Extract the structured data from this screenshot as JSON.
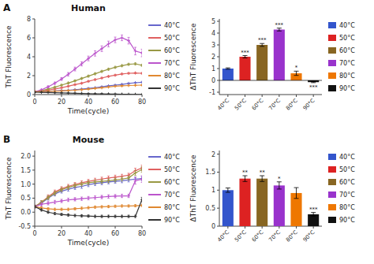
{
  "chart_data": [
    {
      "type": "line",
      "title": "Human",
      "annotations": [
        "A"
      ],
      "marker": "plus",
      "legend": "right",
      "x_label": "Time(cycle)",
      "y_label": "ThT Fluorescence",
      "x": [
        0,
        5,
        10,
        15,
        20,
        25,
        30,
        35,
        40,
        45,
        50,
        55,
        60,
        65,
        70,
        75,
        80
      ],
      "xlim": [
        0,
        80
      ],
      "xticks": [
        0,
        20,
        40,
        60,
        80
      ],
      "ylim": [
        0,
        8
      ],
      "yticks": [
        0,
        2,
        4,
        6,
        8
      ],
      "series": [
        {
          "name": "40°C",
          "color": "#6666cc",
          "values": [
            0.3,
            0.32,
            0.35,
            0.38,
            0.42,
            0.46,
            0.52,
            0.58,
            0.65,
            0.72,
            0.82,
            0.92,
            1.0,
            1.08,
            1.18,
            1.25,
            1.3
          ],
          "errors": [
            0.04,
            0.04,
            0.04,
            0.04,
            0.04,
            0.04,
            0.04,
            0.04,
            0.04,
            0.04,
            0.04,
            0.04,
            0.04,
            0.04,
            0.04,
            0.04,
            0.04
          ]
        },
        {
          "name": "50°C",
          "color": "#e06060",
          "values": [
            0.3,
            0.38,
            0.48,
            0.6,
            0.72,
            0.88,
            1.05,
            1.2,
            1.4,
            1.58,
            1.75,
            1.92,
            2.05,
            2.18,
            2.25,
            2.28,
            2.25
          ],
          "errors": [
            0.04,
            0.05,
            0.05,
            0.06,
            0.06,
            0.07,
            0.07,
            0.07,
            0.07,
            0.07,
            0.07,
            0.07,
            0.07,
            0.07,
            0.07,
            0.07,
            0.07
          ]
        },
        {
          "name": "60°C",
          "color": "#999944",
          "values": [
            0.3,
            0.42,
            0.58,
            0.78,
            1.0,
            1.22,
            1.45,
            1.7,
            1.95,
            2.2,
            2.45,
            2.68,
            2.88,
            3.05,
            3.2,
            3.25,
            3.1
          ],
          "errors": [
            0.04,
            0.05,
            0.06,
            0.07,
            0.08,
            0.09,
            0.09,
            0.09,
            0.1,
            0.1,
            0.1,
            0.1,
            0.1,
            0.1,
            0.1,
            0.1,
            0.1
          ]
        },
        {
          "name": "70°C",
          "color": "#bb55cc",
          "values": [
            0.3,
            0.5,
            0.82,
            1.2,
            1.65,
            2.15,
            2.7,
            3.25,
            3.82,
            4.35,
            4.85,
            5.35,
            5.78,
            6.0,
            5.7,
            4.6,
            4.4
          ],
          "errors": [
            0.04,
            0.07,
            0.1,
            0.12,
            0.15,
            0.18,
            0.2,
            0.22,
            0.25,
            0.28,
            0.3,
            0.3,
            0.3,
            0.3,
            0.35,
            0.4,
            0.4
          ]
        },
        {
          "name": "80°C",
          "color": "#e08830",
          "values": [
            0.3,
            0.32,
            0.34,
            0.36,
            0.38,
            0.42,
            0.46,
            0.52,
            0.58,
            0.65,
            0.72,
            0.8,
            0.88,
            0.92,
            0.96,
            0.98,
            1.0
          ],
          "errors": [
            0.04,
            0.04,
            0.04,
            0.04,
            0.04,
            0.04,
            0.04,
            0.04,
            0.04,
            0.04,
            0.04,
            0.04,
            0.04,
            0.04,
            0.04,
            0.04,
            0.04
          ]
        },
        {
          "name": "90°C",
          "color": "#333333",
          "values": [
            0.25,
            0.24,
            0.22,
            0.2,
            0.18,
            0.16,
            0.14,
            0.12,
            0.1,
            0.08,
            0.07,
            0.06,
            0.05,
            0.04,
            0.03,
            0.02,
            0.01
          ],
          "errors": [
            0.03,
            0.03,
            0.03,
            0.03,
            0.03,
            0.03,
            0.03,
            0.03,
            0.03,
            0.03,
            0.03,
            0.03,
            0.03,
            0.03,
            0.03,
            0.03,
            0.03
          ]
        }
      ]
    },
    {
      "type": "bar",
      "legend": "right",
      "y_label": "ΔThT Fluorescence",
      "categories": [
        "40°C",
        "50°C",
        "60°C",
        "70°C",
        "80°C",
        "90°C"
      ],
      "values": [
        1.0,
        2.0,
        3.0,
        4.3,
        0.6,
        -0.15
      ],
      "errors": [
        0.06,
        0.1,
        0.12,
        0.12,
        0.18,
        0.04
      ],
      "significance": [
        null,
        "***",
        "***",
        "***",
        "*",
        "***"
      ],
      "colors": [
        "#3355cc",
        "#dd2222",
        "#886622",
        "#9933cc",
        "#ee7700",
        "#111111"
      ],
      "ylim": [
        -1.2,
        5.2
      ],
      "yticks": [
        -1,
        0,
        1,
        2,
        3,
        4,
        5
      ]
    },
    {
      "type": "line",
      "title": "Mouse",
      "annotations": [
        "B"
      ],
      "marker": "plus",
      "legend": "right",
      "x_label": "Time(cycle)",
      "y_label": "ThT Fluorescence",
      "x": [
        0,
        5,
        10,
        15,
        20,
        25,
        30,
        35,
        40,
        45,
        50,
        55,
        60,
        65,
        70,
        75,
        80
      ],
      "xlim": [
        0,
        80
      ],
      "xticks": [
        0,
        20,
        40,
        60,
        80
      ],
      "ylim": [
        -0.5,
        2.2
      ],
      "yticks": [
        -0.5,
        {
          "value": 0.0,
          "label": "0.0"
        },
        0.5,
        {
          "value": 1.0,
          "label": "1.0"
        },
        1.5,
        {
          "value": 2.0,
          "label": "2.0"
        }
      ],
      "series": [
        {
          "name": "40°C",
          "color": "#6666cc",
          "values": [
            0.2,
            0.32,
            0.5,
            0.65,
            0.75,
            0.82,
            0.88,
            0.92,
            0.98,
            1.02,
            1.05,
            1.08,
            1.1,
            1.12,
            1.15,
            1.18,
            1.2
          ],
          "errors": [
            0.05,
            0.06,
            0.07,
            0.07,
            0.07,
            0.07,
            0.07,
            0.07,
            0.07,
            0.07,
            0.07,
            0.07,
            0.07,
            0.07,
            0.07,
            0.07,
            0.07
          ]
        },
        {
          "name": "50°C",
          "color": "#e06060",
          "values": [
            0.2,
            0.35,
            0.55,
            0.72,
            0.84,
            0.92,
            0.99,
            1.05,
            1.1,
            1.14,
            1.18,
            1.22,
            1.25,
            1.28,
            1.32,
            1.48,
            1.58
          ],
          "errors": [
            0.05,
            0.06,
            0.07,
            0.07,
            0.07,
            0.07,
            0.07,
            0.07,
            0.07,
            0.07,
            0.07,
            0.07,
            0.07,
            0.07,
            0.07,
            0.09,
            0.1
          ]
        },
        {
          "name": "60°C",
          "color": "#999944",
          "values": [
            0.2,
            0.35,
            0.52,
            0.68,
            0.8,
            0.88,
            0.95,
            1.0,
            1.05,
            1.08,
            1.1,
            1.12,
            1.15,
            1.18,
            1.22,
            1.4,
            1.52
          ],
          "errors": [
            0.05,
            0.06,
            0.07,
            0.07,
            0.07,
            0.07,
            0.07,
            0.07,
            0.07,
            0.07,
            0.07,
            0.07,
            0.07,
            0.07,
            0.07,
            0.09,
            0.1
          ]
        },
        {
          "name": "70°C",
          "color": "#bb55cc",
          "values": [
            0.2,
            0.28,
            0.32,
            0.36,
            0.4,
            0.44,
            0.46,
            0.48,
            0.5,
            0.52,
            0.54,
            0.56,
            0.57,
            0.58,
            0.58,
            1.12,
            1.18
          ],
          "errors": [
            0.05,
            0.06,
            0.06,
            0.06,
            0.06,
            0.06,
            0.06,
            0.06,
            0.06,
            0.06,
            0.06,
            0.06,
            0.06,
            0.06,
            0.06,
            0.12,
            0.12
          ]
        },
        {
          "name": "80°C",
          "color": "#e08830",
          "values": [
            0.2,
            0.15,
            0.12,
            0.1,
            0.1,
            0.1,
            0.12,
            0.14,
            0.16,
            0.18,
            0.19,
            0.2,
            0.21,
            0.22,
            0.22,
            0.23,
            0.24
          ],
          "errors": [
            0.04,
            0.04,
            0.04,
            0.04,
            0.04,
            0.04,
            0.04,
            0.04,
            0.04,
            0.04,
            0.04,
            0.04,
            0.04,
            0.04,
            0.04,
            0.04,
            0.04
          ]
        },
        {
          "name": "90°C",
          "color": "#333333",
          "values": [
            0.2,
            0.08,
            0.0,
            -0.05,
            -0.08,
            -0.1,
            -0.12,
            -0.13,
            -0.14,
            -0.15,
            -0.15,
            -0.15,
            -0.15,
            -0.15,
            -0.15,
            -0.15,
            0.45
          ],
          "errors": [
            0.04,
            0.04,
            0.04,
            0.04,
            0.04,
            0.04,
            0.04,
            0.04,
            0.04,
            0.04,
            0.04,
            0.04,
            0.04,
            0.04,
            0.04,
            0.04,
            0.08
          ]
        }
      ]
    },
    {
      "type": "bar",
      "legend": "right",
      "y_label": "ΔThT Fluorescence",
      "categories": [
        "40°C",
        "50°C",
        "60°C",
        "70°C",
        "80°C",
        "90°C"
      ],
      "values": [
        1.0,
        1.32,
        1.32,
        1.13,
        0.92,
        0.33
      ],
      "errors": [
        0.06,
        0.08,
        0.08,
        0.1,
        0.15,
        0.05
      ],
      "significance": [
        null,
        "**",
        "**",
        "*",
        null,
        "***"
      ],
      "colors": [
        "#3355cc",
        "#dd2222",
        "#886622",
        "#9933cc",
        "#ee7700",
        "#111111"
      ],
      "ylim": [
        0.0,
        2.1
      ],
      "yticks": [
        0.0,
        0.5,
        1.0,
        1.5,
        2.0
      ]
    }
  ]
}
